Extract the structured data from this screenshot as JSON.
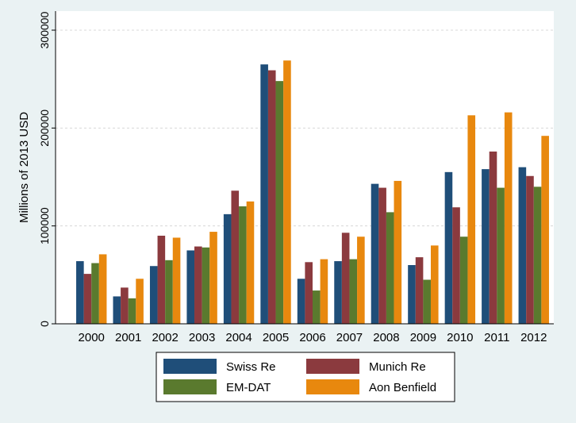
{
  "chart_data": {
    "type": "bar",
    "title": "",
    "xlabel": "",
    "ylabel": "Millions of 2013 USD",
    "ylim": [
      0,
      300000
    ],
    "yticks": [
      0,
      100000,
      200000,
      300000
    ],
    "ytick_labels": [
      "0",
      "100000",
      "200000",
      "300000"
    ],
    "grid": "horizontal dashed, light",
    "legend_position": "bottom-center",
    "categories": [
      "2000",
      "2001",
      "2002",
      "2003",
      "2004",
      "2005",
      "2006",
      "2007",
      "2008",
      "2009",
      "2010",
      "2011",
      "2012"
    ],
    "series": [
      {
        "name": "Swiss Re",
        "color": "#1f4e79",
        "values": [
          64000,
          28000,
          59000,
          75000,
          112000,
          265000,
          46000,
          64000,
          143000,
          60000,
          155000,
          158000,
          160000
        ]
      },
      {
        "name": "Munich Re",
        "color": "#8b3a3e",
        "values": [
          51000,
          37000,
          90000,
          79000,
          136000,
          259000,
          63000,
          93000,
          139000,
          68000,
          119000,
          176000,
          151000
        ]
      },
      {
        "name": "EM-DAT",
        "color": "#5a7a2e",
        "values": [
          62000,
          26000,
          65000,
          78000,
          120000,
          248000,
          34000,
          66000,
          114000,
          45000,
          89000,
          139000,
          140000
        ]
      },
      {
        "name": "Aon Benfield",
        "color": "#e8880e",
        "values": [
          71000,
          46000,
          88000,
          94000,
          125000,
          269000,
          66000,
          89000,
          146000,
          80000,
          213000,
          216000,
          192000
        ]
      }
    ]
  }
}
